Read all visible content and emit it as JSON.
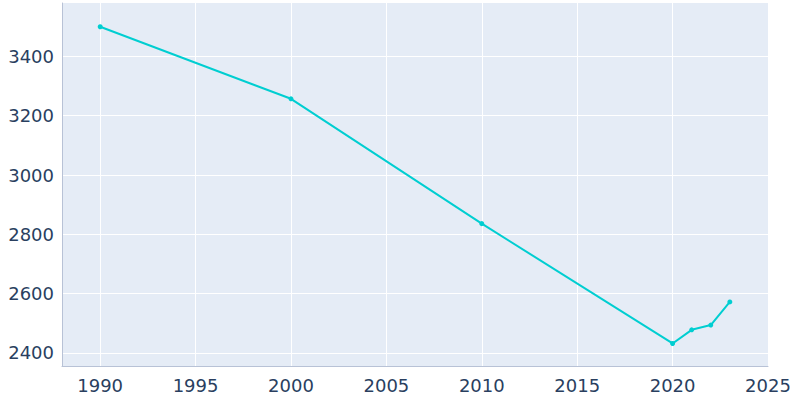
{
  "chart_data": {
    "type": "line",
    "x": [
      1990,
      2000,
      2010,
      2020,
      2021,
      2022,
      2023
    ],
    "values": [
      3500,
      3257,
      2836,
      2432,
      2478,
      2494,
      2572
    ],
    "color": "#00ced1",
    "marker": "circle",
    "xlim": [
      1988,
      2025
    ],
    "xticks": [
      1990,
      1995,
      2000,
      2005,
      2010,
      2015,
      2020,
      2025
    ],
    "ylim": [
      2356,
      3580
    ],
    "yticks": [
      2400,
      2600,
      2800,
      3000,
      3200,
      3400
    ],
    "grid": true
  }
}
